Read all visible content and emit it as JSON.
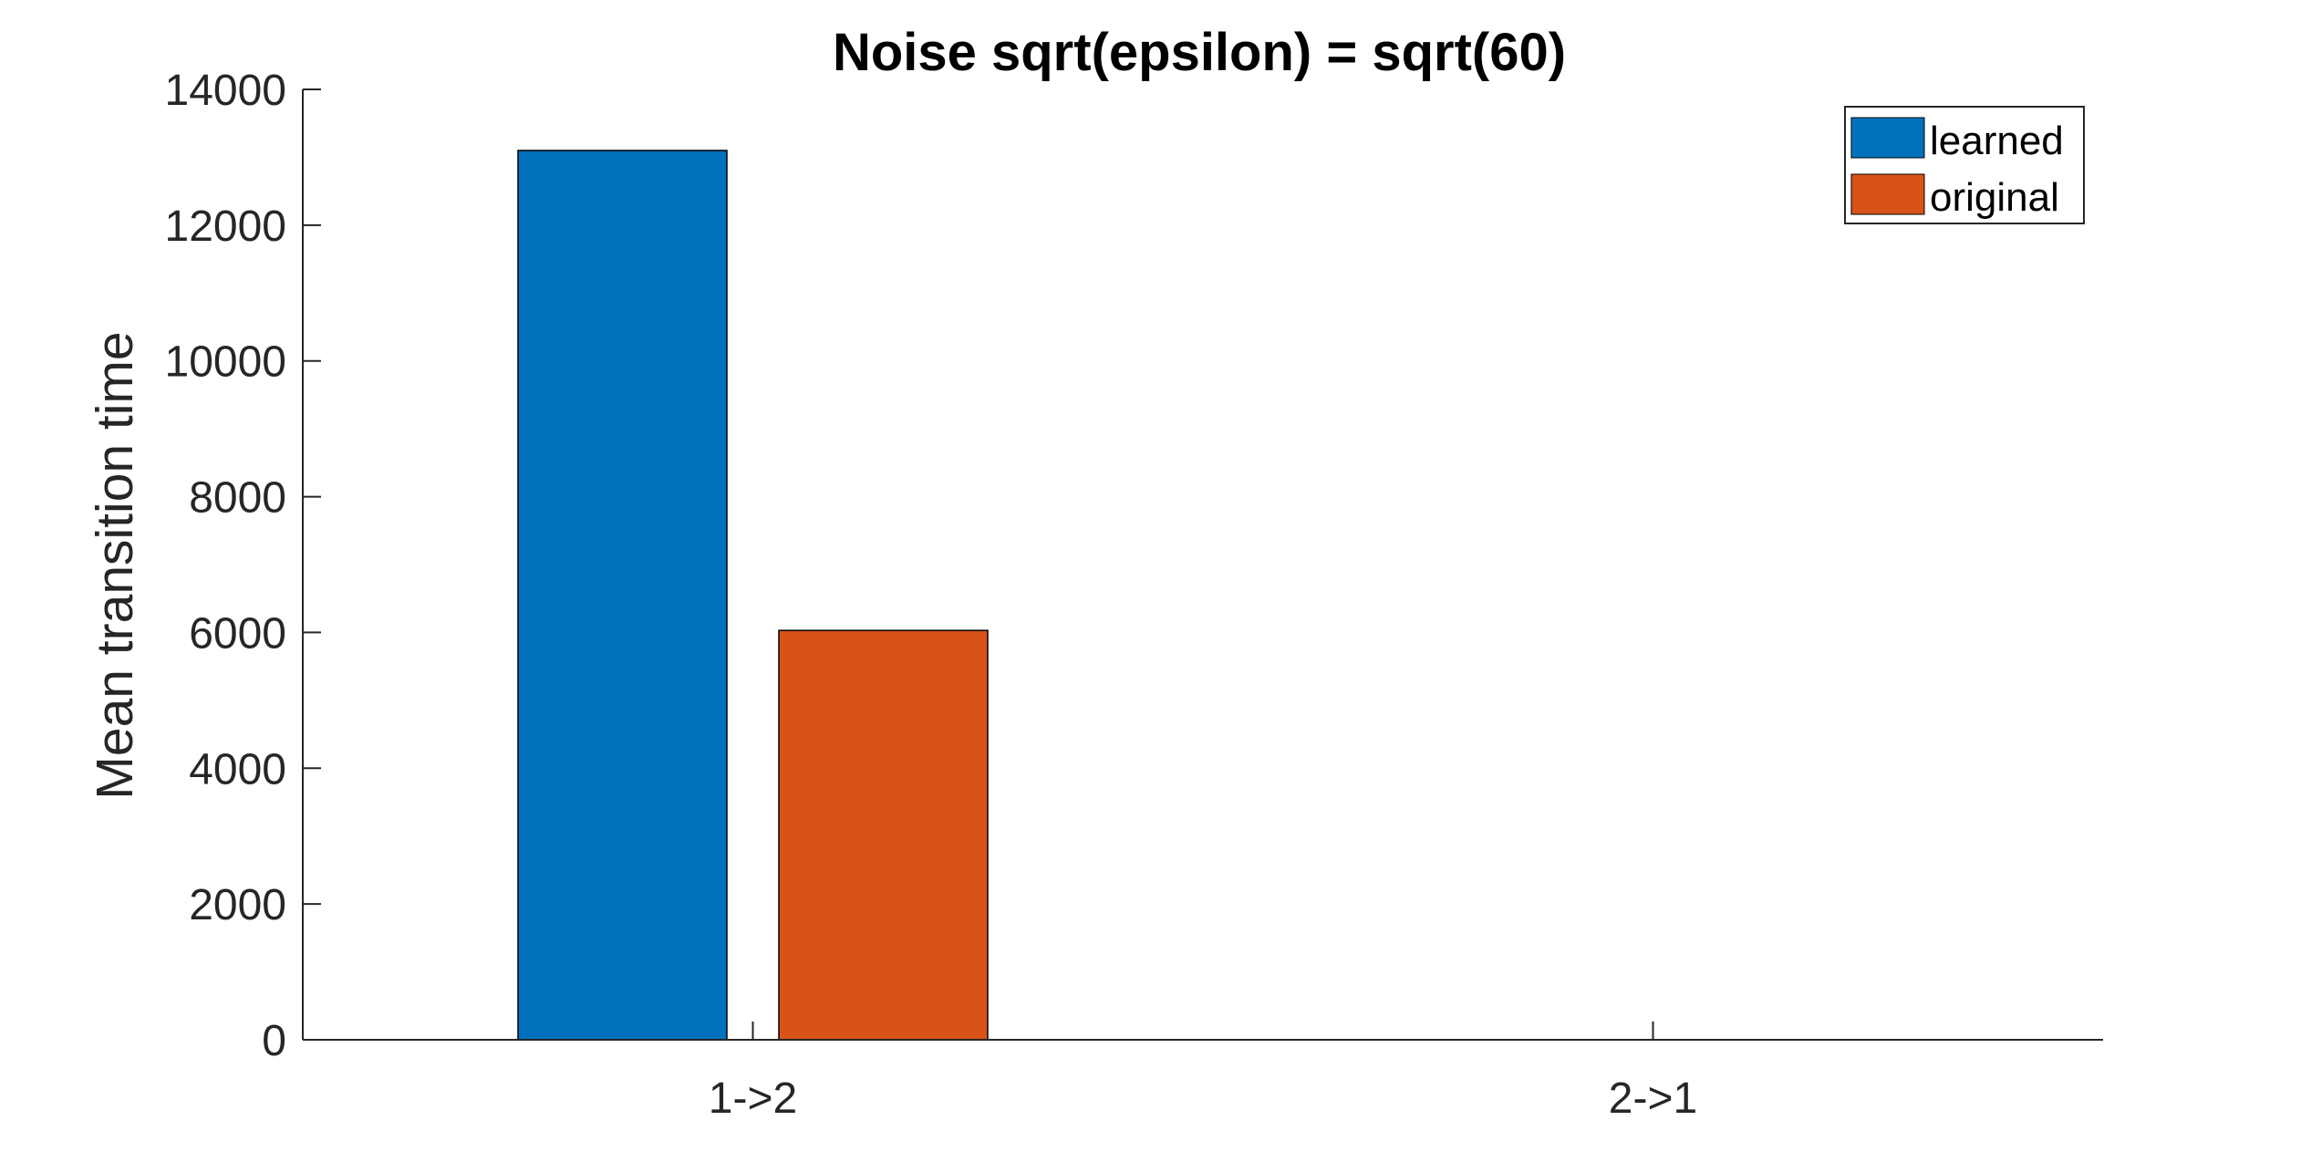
{
  "chart_data": {
    "type": "bar",
    "title": "Noise sqrt(epsilon) = sqrt(60)",
    "xlabel": "",
    "ylabel": "Mean transition time",
    "categories": [
      "1->2",
      "2->1"
    ],
    "series": [
      {
        "name": "learned",
        "color": "#0072BD",
        "values": [
          13100,
          0
        ]
      },
      {
        "name": "original",
        "color": "#D95319",
        "values": [
          6030,
          0
        ]
      }
    ],
    "ylim": [
      0,
      14000
    ],
    "yticks": [
      "0",
      "2000",
      "4000",
      "6000",
      "8000",
      "10000",
      "12000",
      "14000"
    ],
    "grid": false,
    "legend_position": "top-right"
  }
}
